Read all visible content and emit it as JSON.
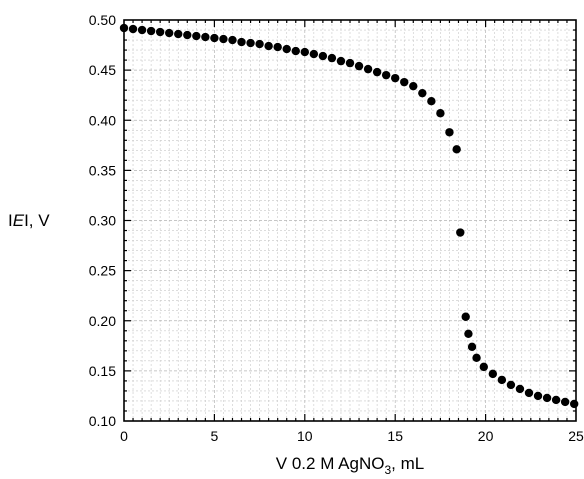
{
  "chart_data": {
    "type": "scatter",
    "title": "",
    "xlabel": {
      "prefix": "V 0.2 M AgNO",
      "subscript": "3",
      "suffix": ", mL"
    },
    "ylabel": {
      "prefix": "I",
      "italic": "E",
      "suffix": "I, V"
    },
    "xlim": [
      0,
      25
    ],
    "ylim": [
      0.1,
      0.5
    ],
    "xticks": [
      0,
      5,
      10,
      15,
      20,
      25
    ],
    "xtick_labels": [
      "0",
      "5",
      "10",
      "15",
      "20",
      "25"
    ],
    "yticks": [
      0.1,
      0.15,
      0.2,
      0.25,
      0.3,
      0.35,
      0.4,
      0.45,
      0.5
    ],
    "ytick_labels": [
      "0.10",
      "0.15",
      "0.20",
      "0.25",
      "0.30",
      "0.35",
      "0.40",
      "0.45",
      "0.50"
    ],
    "grid": true,
    "series": [
      {
        "color": "#000000",
        "marker": "circle",
        "x": [
          0,
          0.5,
          1,
          1.5,
          2,
          2.5,
          3,
          3.5,
          4,
          4.5,
          5,
          5.5,
          6,
          6.5,
          7,
          7.5,
          8,
          8.5,
          9,
          9.5,
          10,
          10.5,
          11,
          11.5,
          12,
          12.5,
          13,
          13.5,
          14,
          14.5,
          15,
          15.5,
          16,
          16.5,
          17,
          17.5,
          18,
          18.4,
          18.6,
          18.9,
          19.05,
          19.25,
          19.5,
          19.9,
          20.4,
          20.9,
          21.4,
          21.9,
          22.4,
          22.9,
          23.4,
          23.9,
          24.4,
          24.9
        ],
        "y": [
          0.492,
          0.491,
          0.49,
          0.489,
          0.488,
          0.487,
          0.486,
          0.485,
          0.484,
          0.483,
          0.482,
          0.481,
          0.48,
          0.478,
          0.477,
          0.476,
          0.474,
          0.473,
          0.471,
          0.469,
          0.468,
          0.466,
          0.464,
          0.462,
          0.459,
          0.457,
          0.454,
          0.451,
          0.448,
          0.445,
          0.442,
          0.438,
          0.434,
          0.427,
          0.419,
          0.407,
          0.388,
          0.371,
          0.288,
          0.204,
          0.187,
          0.174,
          0.163,
          0.154,
          0.147,
          0.141,
          0.136,
          0.132,
          0.128,
          0.125,
          0.123,
          0.121,
          0.119,
          0.117
        ]
      }
    ]
  }
}
